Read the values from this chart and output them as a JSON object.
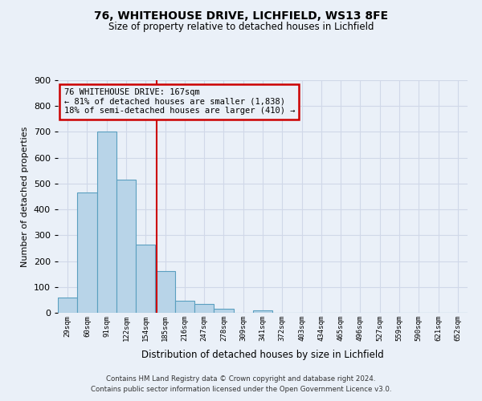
{
  "title": "76, WHITEHOUSE DRIVE, LICHFIELD, WS13 8FE",
  "subtitle": "Size of property relative to detached houses in Lichfield",
  "xlabel": "Distribution of detached houses by size in Lichfield",
  "ylabel": "Number of detached properties",
  "bin_labels": [
    "29sqm",
    "60sqm",
    "91sqm",
    "122sqm",
    "154sqm",
    "185sqm",
    "216sqm",
    "247sqm",
    "278sqm",
    "309sqm",
    "341sqm",
    "372sqm",
    "403sqm",
    "434sqm",
    "465sqm",
    "496sqm",
    "527sqm",
    "559sqm",
    "590sqm",
    "621sqm",
    "652sqm"
  ],
  "bar_heights": [
    60,
    465,
    700,
    515,
    265,
    160,
    48,
    33,
    14,
    0,
    10,
    0,
    0,
    0,
    0,
    0,
    0,
    0,
    0,
    0,
    0
  ],
  "bar_color": "#b8d4e8",
  "bar_edge_color": "#5a9fc0",
  "property_line_x": 4.58,
  "annotation_title": "76 WHITEHOUSE DRIVE: 167sqm",
  "annotation_line1": "← 81% of detached houses are smaller (1,838)",
  "annotation_line2": "18% of semi-detached houses are larger (410) →",
  "annotation_box_color": "#cc0000",
  "grid_color": "#d0d8e8",
  "background_color": "#eaf0f8",
  "ylim": [
    0,
    900
  ],
  "yticks": [
    0,
    100,
    200,
    300,
    400,
    500,
    600,
    700,
    800,
    900
  ],
  "footnote1": "Contains HM Land Registry data © Crown copyright and database right 2024.",
  "footnote2": "Contains public sector information licensed under the Open Government Licence v3.0."
}
